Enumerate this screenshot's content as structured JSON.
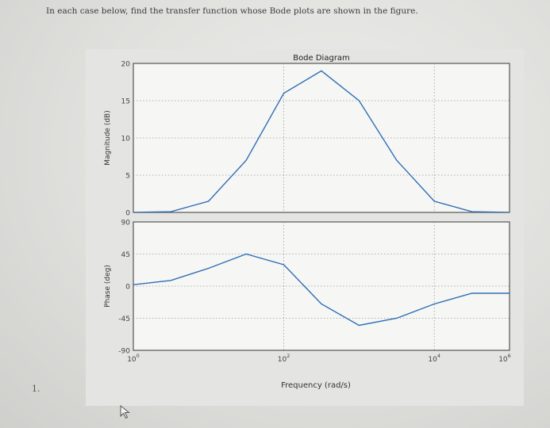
{
  "document": {
    "instruction": "In each case below, find the transfer function whose Bode plots are shown in the figure.",
    "problem_number": "1."
  },
  "chart_data": {
    "type": "line",
    "title": "Bode Diagram",
    "xlabel": "Frequency (rad/s)",
    "xscale": "log",
    "xlim": [
      1,
      100000
    ],
    "x_ticks": [
      {
        "base": "10",
        "exp": "0",
        "value": 1
      },
      {
        "base": "10",
        "exp": "2",
        "value": 100
      },
      {
        "base": "10",
        "exp": "4",
        "value": 10000
      },
      {
        "base": "10",
        "exp": "6",
        "value": 1000000
      }
    ],
    "grid": true,
    "line_color": "#2f6fb5",
    "subplots": [
      {
        "ylabel": "Magnitude (dB)",
        "ylim": [
          0,
          20
        ],
        "y_ticks": [
          "0",
          "5",
          "10",
          "15",
          "20"
        ],
        "series": [
          {
            "x": [
              0.316,
              1,
              3.16,
              10,
              31.6,
              100,
              316,
              1000,
              3160,
              10000,
              31600,
              100000
            ],
            "values": [
              0,
              0,
              0.1,
              1.5,
              7,
              16,
              19,
              15,
              7,
              1.5,
              0.1,
              0
            ]
          }
        ]
      },
      {
        "ylabel": "Phase (deg)",
        "ylim": [
          -90,
          90
        ],
        "y_ticks": [
          "-90",
          "-45",
          "0",
          "45",
          "90"
        ],
        "series": [
          {
            "x": [
              0.316,
              1,
              3.16,
              10,
              31.6,
              100,
              316,
              1000,
              3160,
              10000,
              31600,
              100000
            ],
            "values": [
              0,
              2,
              8,
              25,
              45,
              30,
              -25,
              -55,
              -45,
              -25,
              -10,
              -10
            ]
          }
        ]
      }
    ]
  }
}
